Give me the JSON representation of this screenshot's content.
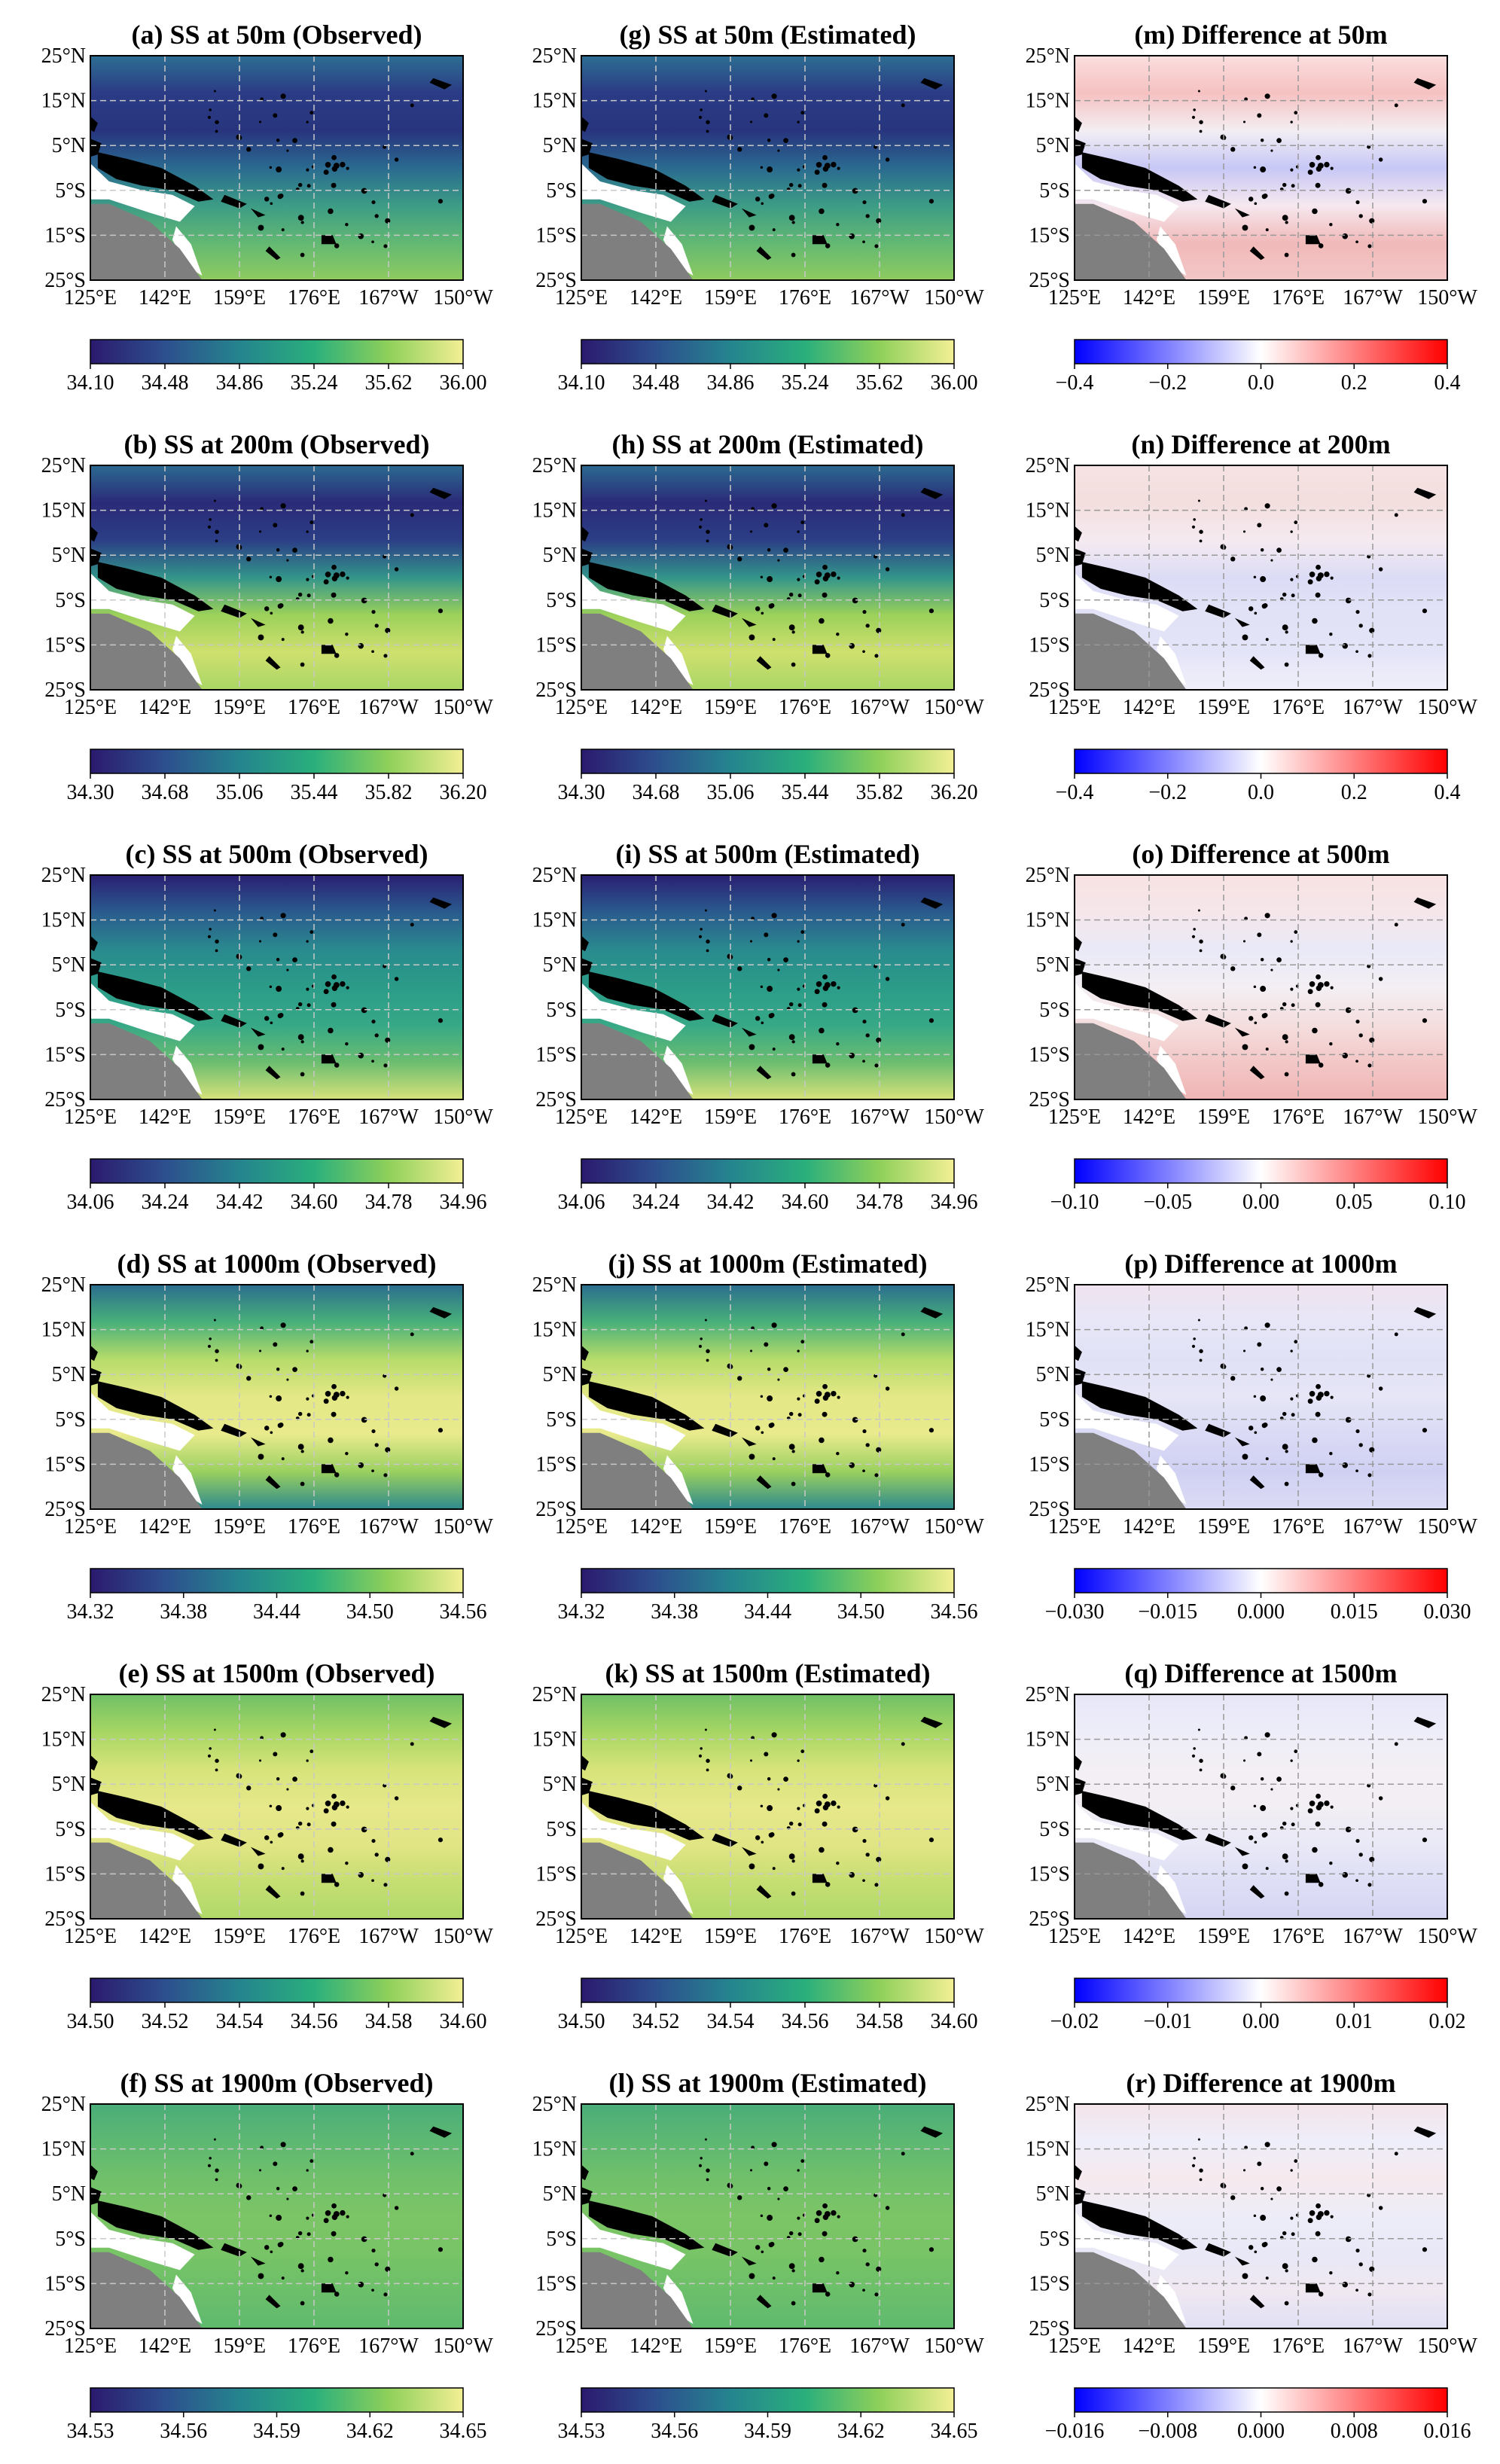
{
  "lat_labels": [
    "25°N",
    "15°N",
    "5°N",
    "5°S",
    "15°S",
    "25°S"
  ],
  "lon_labels": [
    "125°E",
    "142°E",
    "159°E",
    "176°E",
    "167°W",
    "150°W"
  ],
  "panels": [
    {
      "title": "(a) SS at 50m (Observed)",
      "type": "ss",
      "cbar": {
        "ticks": [
          "34.10",
          "34.48",
          "34.86",
          "35.24",
          "35.62",
          "36.00"
        ],
        "cmap": "ss"
      },
      "pattern": "p50"
    },
    {
      "title": "(g) SS at 50m (Estimated)",
      "type": "ss",
      "cbar": {
        "ticks": [
          "34.10",
          "34.48",
          "34.86",
          "35.24",
          "35.62",
          "36.00"
        ],
        "cmap": "ss"
      },
      "pattern": "p50"
    },
    {
      "title": "(m) Difference at 50m",
      "type": "diff",
      "cbar": {
        "ticks": [
          "−0.4",
          "−0.2",
          "0.0",
          "0.2",
          "0.4"
        ],
        "cmap": "diff"
      },
      "pattern": "d50"
    },
    {
      "title": "(b) SS at 200m (Observed)",
      "type": "ss",
      "cbar": {
        "ticks": [
          "34.30",
          "34.68",
          "35.06",
          "35.44",
          "35.82",
          "36.20"
        ],
        "cmap": "ss"
      },
      "pattern": "p200"
    },
    {
      "title": "(h) SS at 200m (Estimated)",
      "type": "ss",
      "cbar": {
        "ticks": [
          "34.30",
          "34.68",
          "35.06",
          "35.44",
          "35.82",
          "36.20"
        ],
        "cmap": "ss"
      },
      "pattern": "p200"
    },
    {
      "title": "(n) Difference at 200m",
      "type": "diff",
      "cbar": {
        "ticks": [
          "−0.4",
          "−0.2",
          "0.0",
          "0.2",
          "0.4"
        ],
        "cmap": "diff"
      },
      "pattern": "d200"
    },
    {
      "title": "(c) SS at 500m (Observed)",
      "type": "ss",
      "cbar": {
        "ticks": [
          "34.06",
          "34.24",
          "34.42",
          "34.60",
          "34.78",
          "34.96"
        ],
        "cmap": "ss"
      },
      "pattern": "p500"
    },
    {
      "title": "(i) SS at 500m (Estimated)",
      "type": "ss",
      "cbar": {
        "ticks": [
          "34.06",
          "34.24",
          "34.42",
          "34.60",
          "34.78",
          "34.96"
        ],
        "cmap": "ss"
      },
      "pattern": "p500"
    },
    {
      "title": "(o) Difference at 500m",
      "type": "diff",
      "cbar": {
        "ticks": [
          "−0.10",
          "−0.05",
          "0.00",
          "0.05",
          "0.10"
        ],
        "cmap": "diff"
      },
      "pattern": "d500"
    },
    {
      "title": "(d) SS at 1000m (Observed)",
      "type": "ss",
      "cbar": {
        "ticks": [
          "34.32",
          "34.38",
          "34.44",
          "34.50",
          "34.56"
        ],
        "cmap": "ss"
      },
      "pattern": "p1000"
    },
    {
      "title": "(j) SS at 1000m (Estimated)",
      "type": "ss",
      "cbar": {
        "ticks": [
          "34.32",
          "34.38",
          "34.44",
          "34.50",
          "34.56"
        ],
        "cmap": "ss"
      },
      "pattern": "p1000"
    },
    {
      "title": "(p) Difference at 1000m",
      "type": "diff",
      "cbar": {
        "ticks": [
          "−0.030",
          "−0.015",
          "0.000",
          "0.015",
          "0.030"
        ],
        "cmap": "diff"
      },
      "pattern": "d1000"
    },
    {
      "title": "(e) SS at 1500m (Observed)",
      "type": "ss",
      "cbar": {
        "ticks": [
          "34.50",
          "34.52",
          "34.54",
          "34.56",
          "34.58",
          "34.60"
        ],
        "cmap": "ss"
      },
      "pattern": "p1500"
    },
    {
      "title": "(k) SS at 1500m (Estimated)",
      "type": "ss",
      "cbar": {
        "ticks": [
          "34.50",
          "34.52",
          "34.54",
          "34.56",
          "34.58",
          "34.60"
        ],
        "cmap": "ss"
      },
      "pattern": "p1500"
    },
    {
      "title": "(q) Difference at 1500m",
      "type": "diff",
      "cbar": {
        "ticks": [
          "−0.02",
          "−0.01",
          "0.00",
          "0.01",
          "0.02"
        ],
        "cmap": "diff"
      },
      "pattern": "d1500"
    },
    {
      "title": "(f) SS at 1900m (Observed)",
      "type": "ss",
      "cbar": {
        "ticks": [
          "34.53",
          "34.56",
          "34.59",
          "34.62",
          "34.65"
        ],
        "cmap": "ss"
      },
      "pattern": "p1900"
    },
    {
      "title": "(l) SS at 1900m (Estimated)",
      "type": "ss",
      "cbar": {
        "ticks": [
          "34.53",
          "34.56",
          "34.59",
          "34.62",
          "34.65"
        ],
        "cmap": "ss"
      },
      "pattern": "p1900"
    },
    {
      "title": "(r) Difference at 1900m",
      "type": "diff",
      "cbar": {
        "ticks": [
          "−0.016",
          "−0.008",
          "0.000",
          "0.008",
          "0.016"
        ],
        "cmap": "diff"
      },
      "pattern": "d1900"
    }
  ],
  "colors": {
    "ss_cmap": [
      "#2b1a6e",
      "#2d4f8e",
      "#25848e",
      "#2aaf7c",
      "#8fd05a",
      "#f3ef95"
    ],
    "diff_cmap": [
      "#0000ff",
      "#ffffff",
      "#ff0000"
    ],
    "land": "#7f7f7f",
    "grid": "#c8c8c8"
  }
}
